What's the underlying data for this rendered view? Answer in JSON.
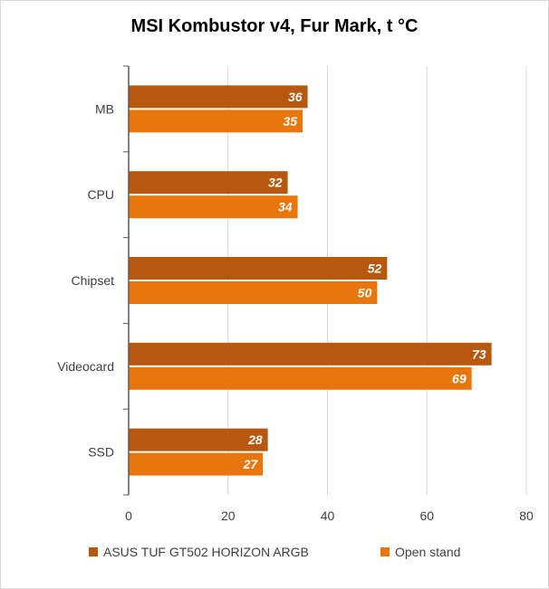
{
  "chart_data": {
    "type": "bar",
    "orientation": "horizontal",
    "title": "MSI Kombustor v4, Fur Mark, t °C",
    "categories": [
      "MB",
      "CPU",
      "Chipset",
      "Videocard",
      "SSD"
    ],
    "series": [
      {
        "name": "ASUS TUF GT502 HORIZON ARGB",
        "color": "#b8580f",
        "values": [
          36,
          32,
          52,
          73,
          28
        ]
      },
      {
        "name": "Open stand",
        "color": "#e8760c",
        "values": [
          35,
          34,
          50,
          69,
          27
        ]
      }
    ],
    "xlim": [
      0,
      80
    ],
    "xticks": [
      0,
      20,
      40,
      60,
      80
    ],
    "grid": true,
    "legend_position": "bottom"
  }
}
